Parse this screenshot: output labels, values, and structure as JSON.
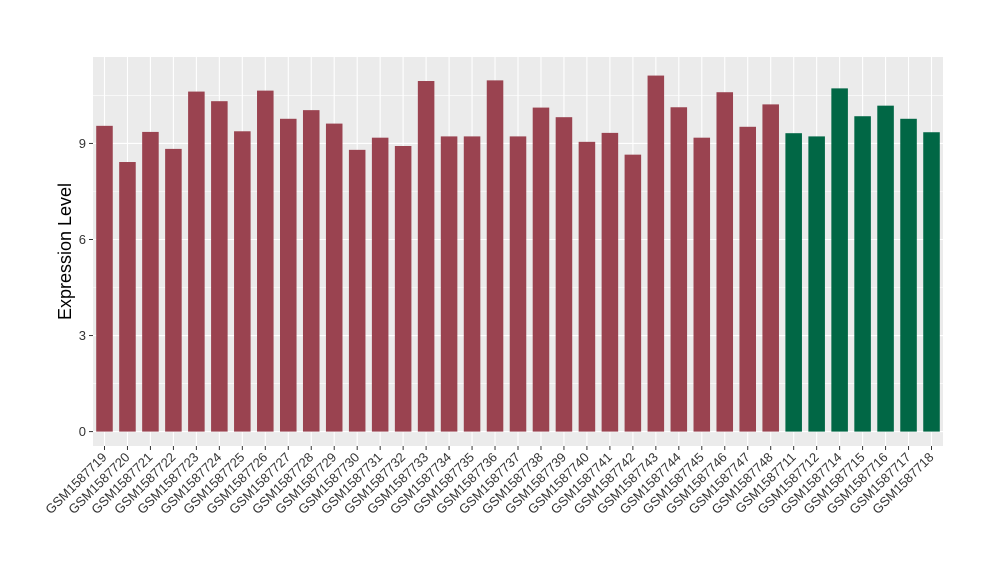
{
  "chart_data": {
    "type": "bar",
    "title": "",
    "xlabel": "",
    "ylabel": "Expression Level",
    "ylim": [
      -0.45,
      11.7
    ],
    "yticks": [
      0,
      3,
      6,
      9
    ],
    "grid": true,
    "legend": "none",
    "colors": {
      "group_a": "#9a4350",
      "group_b": "#016745",
      "panel_bg": "#ebebeb",
      "grid_major": "#ffffff",
      "axis_text": "#333333"
    },
    "categories": [
      "GSM1587719",
      "GSM1587720",
      "GSM1587721",
      "GSM1587722",
      "GSM1587723",
      "GSM1587724",
      "GSM1587725",
      "GSM1587726",
      "GSM1587727",
      "GSM1587728",
      "GSM1587729",
      "GSM1587730",
      "GSM1587731",
      "GSM1587732",
      "GSM1587733",
      "GSM1587734",
      "GSM1587735",
      "GSM1587736",
      "GSM1587737",
      "GSM1587738",
      "GSM1587739",
      "GSM1587740",
      "GSM1587741",
      "GSM1587742",
      "GSM1587743",
      "GSM1587744",
      "GSM1587745",
      "GSM1587746",
      "GSM1587747",
      "GSM1587748",
      "GSM1587711",
      "GSM1587712",
      "GSM1587714",
      "GSM1587715",
      "GSM1587716",
      "GSM1587717",
      "GSM1587718"
    ],
    "values": [
      9.55,
      8.42,
      9.36,
      8.83,
      10.62,
      10.32,
      9.38,
      10.65,
      9.77,
      10.04,
      9.62,
      8.8,
      9.18,
      8.92,
      10.95,
      9.22,
      9.22,
      10.97,
      9.22,
      10.12,
      9.82,
      9.05,
      9.33,
      8.65,
      11.12,
      10.13,
      9.18,
      10.6,
      9.52,
      10.22,
      9.32,
      9.22,
      10.72,
      9.85,
      10.18,
      9.77,
      9.35
    ],
    "groups": [
      "a",
      "a",
      "a",
      "a",
      "a",
      "a",
      "a",
      "a",
      "a",
      "a",
      "a",
      "a",
      "a",
      "a",
      "a",
      "a",
      "a",
      "a",
      "a",
      "a",
      "a",
      "a",
      "a",
      "a",
      "a",
      "a",
      "a",
      "a",
      "a",
      "a",
      "b",
      "b",
      "b",
      "b",
      "b",
      "b",
      "b"
    ]
  }
}
